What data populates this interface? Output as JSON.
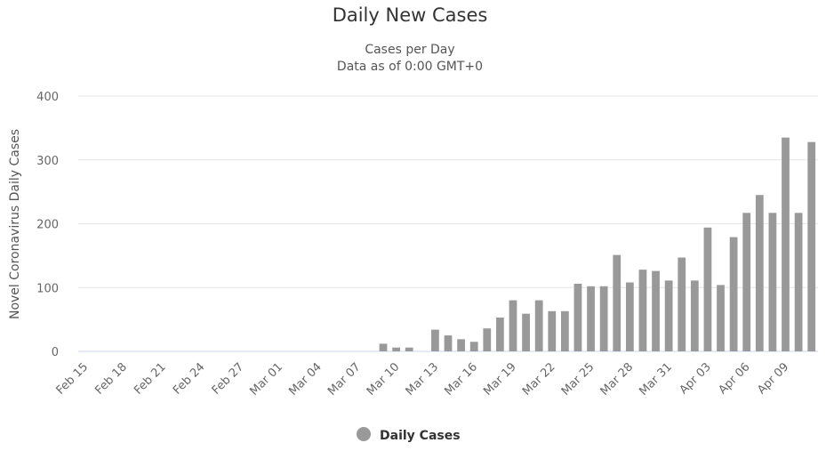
{
  "chart_data": {
    "type": "bar",
    "title": "Daily New Cases",
    "subtitle": [
      "Cases per Day",
      "Data as of 0:00 GMT+0"
    ],
    "y_label": "Novel Coronavirus Daily Cases",
    "categories": [
      "Feb 15",
      null,
      null,
      "Feb 18",
      null,
      null,
      "Feb 21",
      null,
      null,
      "Feb 24",
      null,
      null,
      "Feb 27",
      null,
      null,
      "Mar 01",
      null,
      null,
      "Mar 04",
      null,
      null,
      "Mar 07",
      null,
      null,
      "Mar 10",
      null,
      null,
      "Mar 13",
      null,
      null,
      "Mar 16",
      null,
      null,
      "Mar 19",
      null,
      null,
      "Mar 22",
      null,
      null,
      "Mar 25",
      null,
      null,
      "Mar 28",
      null,
      null,
      "Mar 31",
      null,
      null,
      "Apr 03",
      null,
      null,
      "Apr 06",
      null,
      null,
      "Apr 09",
      null,
      null
    ],
    "series": [
      {
        "name": "Daily Cases",
        "color": "#999999",
        "values": [
          0,
          0,
          0,
          0,
          0,
          0,
          0,
          0,
          0,
          0,
          0,
          0,
          0,
          0,
          0,
          0,
          0,
          0,
          0,
          0,
          0,
          0,
          0,
          12,
          6,
          6,
          0,
          34,
          25,
          19,
          15,
          36,
          53,
          80,
          59,
          80,
          63,
          63,
          106,
          102,
          102,
          151,
          108,
          128,
          126,
          111,
          147,
          111,
          194,
          104,
          179,
          217,
          245,
          217,
          335,
          217,
          328
        ]
      }
    ],
    "ylim": [
      0,
      400
    ],
    "yticks": [
      0,
      100,
      200,
      300,
      400
    ],
    "grid": true,
    "legend": "bottom"
  }
}
